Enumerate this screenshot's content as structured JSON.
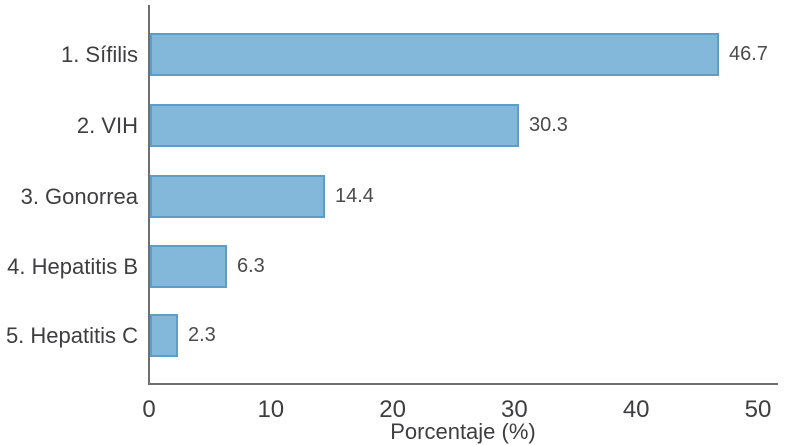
{
  "chart_data": {
    "type": "bar",
    "orientation": "horizontal",
    "title": "",
    "categories": [
      "1. Sífilis",
      "2. VIH",
      "3. Gonorrea",
      "4. Hepatitis B",
      "5. Hepatitis C"
    ],
    "values": [
      46.7,
      30.3,
      14.4,
      6.3,
      2.3
    ],
    "value_labels": [
      "46.7",
      "30.3",
      "14.4",
      "6.3",
      "2.3"
    ],
    "xlabel": "Porcentaje (%)",
    "ylabel": "",
    "xlim": [
      0,
      50
    ],
    "xticks": [
      "0",
      "10",
      "20",
      "30",
      "40",
      "50"
    ],
    "xtick_values": [
      0,
      10,
      20,
      30,
      40,
      50
    ],
    "grid": false,
    "legend": false,
    "colors": {
      "bar_fill": "#84b8db",
      "bar_border": "#5d9ec7",
      "axis": "#6e6f71",
      "text": "#3e3e40",
      "value_text": "#4b4b4d"
    }
  }
}
